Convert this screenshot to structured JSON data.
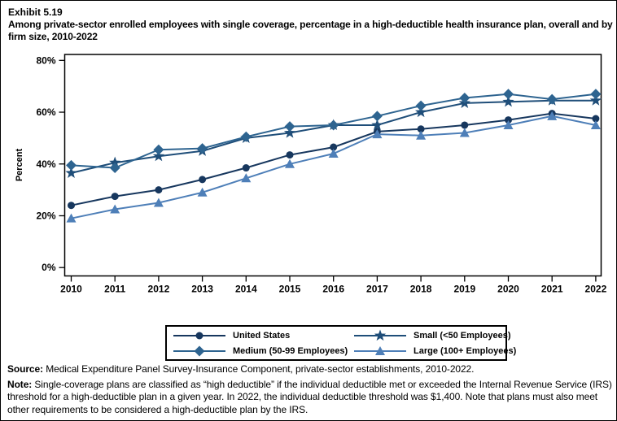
{
  "title": {
    "exhibit": "Exhibit 5.19",
    "text": "Among private-sector enrolled employees with single coverage, percentage in a high-deductible health insurance plan, overall and by firm size, 2010-2022"
  },
  "chart_data": {
    "type": "line",
    "x": [
      "2010",
      "2011",
      "2012",
      "2013",
      "2014",
      "2015",
      "2016",
      "2017",
      "2018",
      "2019",
      "2020",
      "2021",
      "2022"
    ],
    "series": [
      {
        "name": "United States",
        "marker": "circle",
        "color": "#17375E",
        "values": [
          24,
          27.5,
          30,
          34,
          38.5,
          43.5,
          46.5,
          52.5,
          53.5,
          55,
          57,
          59.5,
          57.5
        ]
      },
      {
        "name": "Small (<50 Employees)",
        "marker": "star",
        "color": "#1F4E79",
        "values": [
          36.5,
          40.5,
          43,
          45,
          50,
          52,
          55,
          55,
          60,
          63.5,
          64,
          64.5,
          64.5
        ]
      },
      {
        "name": "Medium (50-99 Employees)",
        "marker": "diamond",
        "color": "#2E6490",
        "values": [
          39.5,
          38.5,
          45.5,
          46,
          50.5,
          54.5,
          55,
          58.5,
          62.5,
          65.5,
          67,
          65,
          67
        ]
      },
      {
        "name": "Large (100+ Employees)",
        "marker": "triangle",
        "color": "#4E7FB8",
        "values": [
          19,
          22.5,
          25,
          29,
          34.5,
          40,
          44,
          51.5,
          51,
          52,
          55,
          58.5,
          55
        ]
      }
    ],
    "ylabel": "Percent",
    "ylim": [
      0,
      80
    ],
    "yticks": [
      {
        "value": 0,
        "label": "0%"
      },
      {
        "value": 20,
        "label": "20%"
      },
      {
        "value": 40,
        "label": "40%"
      },
      {
        "value": 60,
        "label": "60%"
      },
      {
        "value": 80,
        "label": "80%"
      }
    ],
    "grid": false,
    "legend_position": "bottom"
  },
  "footer": {
    "source_label": "Source:",
    "source_text": " Medical Expenditure Panel Survey-Insurance Component, private-sector establishments, 2010-2022.",
    "note_label": "Note:",
    "note_text": " Single-coverage plans are classified as “high deductible” if the individual deductible met or exceeded the Internal Revenue Service (IRS) threshold for a high-deductible plan in a given year. In 2022, the individual deductible threshold was $1,400. Note that plans must also meet other requirements to be considered a high-deductible plan by the IRS."
  }
}
